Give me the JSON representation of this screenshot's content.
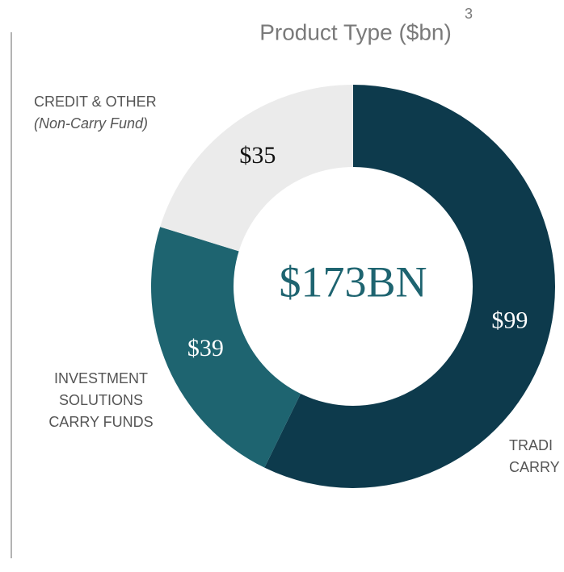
{
  "chart_data": {
    "type": "pie",
    "donut": true,
    "title": "Product Type ($bn)",
    "title_superscript": "3",
    "center_label": "$173BN",
    "categories": [
      [
        "TRADI",
        "CARRY"
      ],
      [
        "INVESTMENT",
        "SOLUTIONS",
        "CARRY FUNDS"
      ],
      [
        "CREDIT & OTHER",
        "(Non-Carry Fund)"
      ]
    ],
    "values": [
      99,
      39,
      35
    ],
    "value_labels": [
      "$99",
      "$39",
      "$35"
    ],
    "colors": [
      "#0d3a4c",
      "#1e6470",
      "#ebebeb"
    ],
    "label_colors": [
      "#ffffff",
      "#ffffff",
      "#111111"
    ]
  }
}
